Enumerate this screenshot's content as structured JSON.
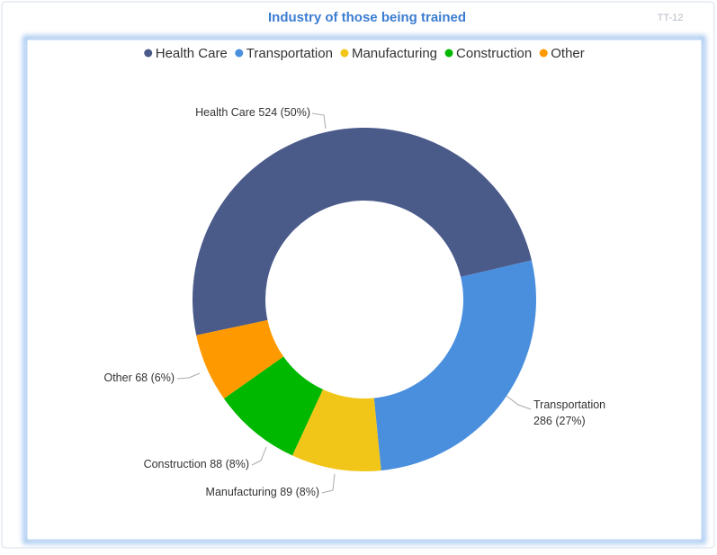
{
  "id_label": "TT-12",
  "chart_data": {
    "type": "donut",
    "title": "Industry of those being trained",
    "categories": [
      "Health Care",
      "Transportation",
      "Manufacturing",
      "Construction",
      "Other"
    ],
    "series": [
      {
        "values": [
          524,
          286,
          89,
          88,
          68
        ],
        "value_labels": [
          "524 (50%)",
          "286 (27%)",
          "89 (8%)",
          "88 (8%)",
          "68 (6%)"
        ],
        "colors": [
          "#4a5a89",
          "#4a8fdd",
          "#f2c618",
          "#00b800",
          "#ff9900"
        ]
      }
    ],
    "legend": "top"
  }
}
